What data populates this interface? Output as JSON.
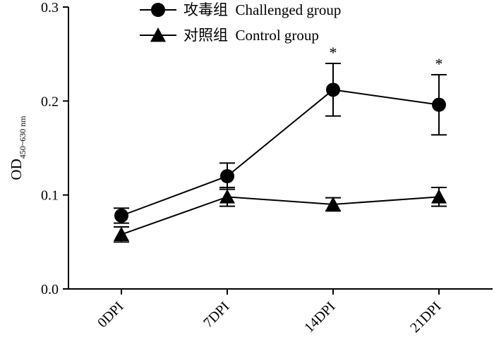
{
  "chart_data": {
    "type": "line",
    "title": "",
    "xlabel": "",
    "ylabel": "OD",
    "ylabel_subscript": "450~630 nm",
    "categories": [
      "0DPI",
      "7DPI",
      "14DPI",
      "21DPI"
    ],
    "ylim": [
      0.0,
      0.3
    ],
    "yticks": [
      "0.0",
      "0.1",
      "0.2",
      "0.3"
    ],
    "grid": false,
    "legend_position": "top-center",
    "series": [
      {
        "name": "攻毒组  Challenged group",
        "marker": "circle",
        "values": [
          0.078,
          0.12,
          0.212,
          0.196
        ],
        "error": [
          0.008,
          0.014,
          0.028,
          0.032
        ],
        "annotations": [
          "",
          "",
          "*",
          "*"
        ]
      },
      {
        "name": "对照组  Control group",
        "marker": "triangle",
        "values": [
          0.058,
          0.098,
          0.09,
          0.098
        ],
        "error": [
          0.008,
          0.01,
          0.007,
          0.01
        ],
        "annotations": [
          "",
          "",
          "",
          ""
        ]
      }
    ]
  }
}
